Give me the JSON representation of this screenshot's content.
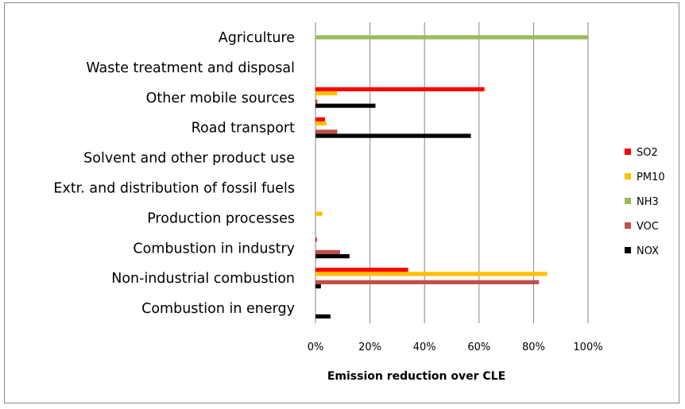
{
  "chart_data": {
    "type": "bar",
    "orientation": "horizontal",
    "title": "",
    "xlabel": "Emission reduction over CLE",
    "ylabel": "",
    "xlim": [
      0,
      1
    ],
    "x_ticks": [
      "0%",
      "20%",
      "40%",
      "60%",
      "80%",
      "100%"
    ],
    "grid": true,
    "legend_position": "right",
    "categories": [
      "Agriculture",
      "Waste treatment and disposal",
      "Other mobile sources",
      "Road transport",
      "Solvent and other product use",
      "Extr. and distribution of fossil fuels",
      "Production processes",
      "Combustion in industry",
      "Non-industrial combustion",
      "Combustion in energy"
    ],
    "series": [
      {
        "name": "SO2",
        "color": "#ff0000",
        "values": [
          0,
          0,
          0.62,
          0.035,
          0,
          0,
          0,
          0.005,
          0.34,
          0
        ]
      },
      {
        "name": "PM10",
        "color": "#ffc000",
        "values": [
          0,
          0,
          0.08,
          0.04,
          0,
          0,
          0.025,
          0,
          0.85,
          0
        ]
      },
      {
        "name": "NH3",
        "color": "#9bbb59",
        "values": [
          1.0,
          0,
          0,
          0,
          0,
          0,
          0,
          0,
          0,
          0
        ]
      },
      {
        "name": "VOC",
        "color": "#c0504d",
        "values": [
          0,
          0,
          0.007,
          0.08,
          0,
          0,
          0,
          0.09,
          0.82,
          0
        ]
      },
      {
        "name": "NOX",
        "color": "#000000",
        "values": [
          0,
          0,
          0.22,
          0.57,
          0,
          0,
          0,
          0.125,
          0.02,
          0.055
        ]
      }
    ]
  }
}
